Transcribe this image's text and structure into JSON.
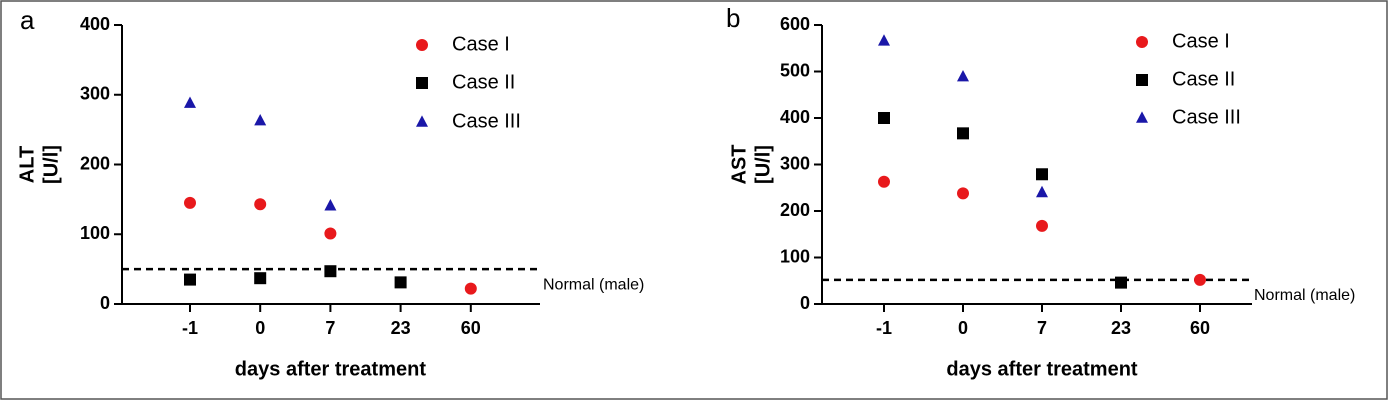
{
  "chart_data": [
    {
      "type": "scatter",
      "panel_label": "a",
      "ylabel": [
        "ALT",
        "[U/l]"
      ],
      "xlabel": "days after treatment",
      "categories": [
        "-1",
        "0",
        "7",
        "23",
        "60"
      ],
      "series": [
        {
          "name": "Case I",
          "color": "#e8191c",
          "marker": "circle",
          "values": [
            145,
            143,
            101,
            null,
            22
          ]
        },
        {
          "name": "Case II",
          "color": "#000000",
          "marker": "square",
          "values": [
            35,
            37,
            47,
            31,
            null
          ]
        },
        {
          "name": "Case III",
          "color": "#1a17a8",
          "marker": "triangle",
          "values": [
            288,
            263,
            141,
            null,
            null
          ]
        }
      ],
      "reference_line": {
        "value": 50,
        "label": "Normal (male)"
      },
      "ylim": [
        0,
        400
      ],
      "yticks": [
        0,
        100,
        200,
        300,
        400
      ]
    },
    {
      "type": "scatter",
      "panel_label": "b",
      "ylabel": [
        "AST",
        "[U/l]"
      ],
      "xlabel": "days after treatment",
      "categories": [
        "-1",
        "0",
        "7",
        "23",
        "60"
      ],
      "series": [
        {
          "name": "Case I",
          "color": "#e8191c",
          "marker": "circle",
          "values": [
            263,
            238,
            168,
            null,
            52
          ]
        },
        {
          "name": "Case II",
          "color": "#000000",
          "marker": "square",
          "values": [
            400,
            367,
            279,
            46,
            null
          ]
        },
        {
          "name": "Case III",
          "color": "#1a17a8",
          "marker": "triangle",
          "values": [
            566,
            489,
            240,
            null,
            null
          ]
        }
      ],
      "reference_line": {
        "value": 52,
        "label": "Normal (male)"
      },
      "ylim": [
        0,
        600
      ],
      "yticks": [
        0,
        100,
        200,
        300,
        400,
        500,
        600
      ]
    }
  ]
}
